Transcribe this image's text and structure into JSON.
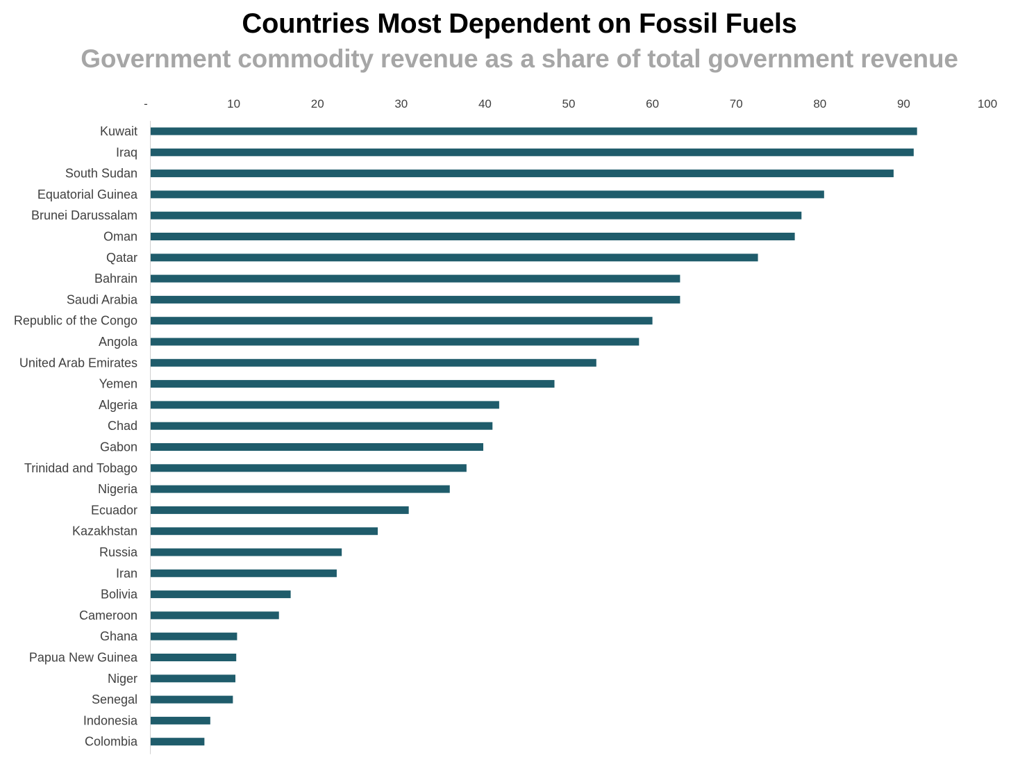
{
  "chart_data": {
    "type": "bar",
    "orientation": "horizontal",
    "title": "Countries Most Dependent on Fossil Fuels",
    "subtitle": "Government commodity revenue as a share of total government revenue",
    "xlim": [
      0,
      100
    ],
    "x_ticks": [
      0,
      10,
      20,
      30,
      40,
      50,
      60,
      70,
      80,
      90,
      100
    ],
    "x_tick_labels": [
      "-",
      "10",
      "20",
      "30",
      "40",
      "50",
      "60",
      "70",
      "80",
      "90",
      "100"
    ],
    "x_axis_position": "top",
    "grid": false,
    "bar_color": "#1f5c6b",
    "categories": [
      "Kuwait",
      "Iraq",
      "South Sudan",
      "Equatorial Guinea",
      "Brunei Darussalam",
      "Oman",
      "Qatar",
      "Bahrain",
      "Saudi Arabia",
      "Republic of the Congo",
      "Angola",
      "United Arab Emirates",
      "Yemen",
      "Algeria",
      "Chad",
      "Gabon",
      "Trinidad and Tobago",
      "Nigeria",
      "Ecuador",
      "Kazakhstan",
      "Russia",
      "Iran",
      "Bolivia",
      "Cameroon",
      "Ghana",
      "Papua New Guinea",
      "Niger",
      "Senegal",
      "Indonesia",
      "Colombia"
    ],
    "values": [
      91.6,
      91.2,
      88.8,
      80.5,
      77.8,
      77.0,
      72.6,
      63.3,
      63.3,
      60.0,
      58.4,
      53.3,
      48.3,
      41.7,
      40.9,
      39.8,
      37.8,
      35.8,
      30.9,
      27.2,
      22.9,
      22.3,
      16.8,
      15.4,
      10.4,
      10.3,
      10.2,
      9.9,
      7.2,
      6.5
    ]
  }
}
